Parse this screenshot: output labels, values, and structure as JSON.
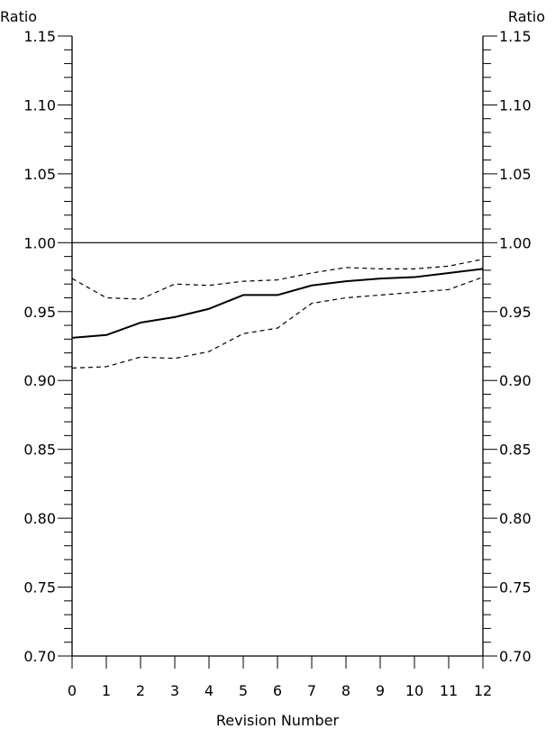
{
  "chart_data": {
    "type": "line",
    "xlabel": "Revision Number",
    "ylabel_left": "Ratio",
    "ylabel_right": "Ratio",
    "x": [
      0,
      1,
      2,
      3,
      4,
      5,
      6,
      7,
      8,
      9,
      10,
      11,
      12
    ],
    "xlim": [
      0,
      12
    ],
    "ylim": [
      0.7,
      1.15
    ],
    "y_major_ticks": [
      "0.70",
      "0.75",
      "0.80",
      "0.85",
      "0.90",
      "0.95",
      "1.00",
      "1.05",
      "1.10",
      "1.15"
    ],
    "x_tick_labels": [
      "0",
      "1",
      "2",
      "3",
      "4",
      "5",
      "6",
      "7",
      "8",
      "9",
      "10",
      "11",
      "12"
    ],
    "reference_line": 1.0,
    "series": [
      {
        "style": "solid",
        "values": [
          0.931,
          0.933,
          0.942,
          0.946,
          0.952,
          0.962,
          0.962,
          0.969,
          0.972,
          0.974,
          0.975,
          0.978,
          0.981
        ]
      },
      {
        "style": "dashed",
        "values": [
          0.974,
          0.96,
          0.959,
          0.97,
          0.969,
          0.972,
          0.973,
          0.978,
          0.982,
          0.981,
          0.981,
          0.983,
          0.988
        ]
      },
      {
        "style": "dashed",
        "values": [
          0.909,
          0.91,
          0.917,
          0.916,
          0.921,
          0.934,
          0.938,
          0.956,
          0.96,
          0.962,
          0.964,
          0.966,
          0.975
        ]
      }
    ],
    "grid": false,
    "legend": "none"
  }
}
